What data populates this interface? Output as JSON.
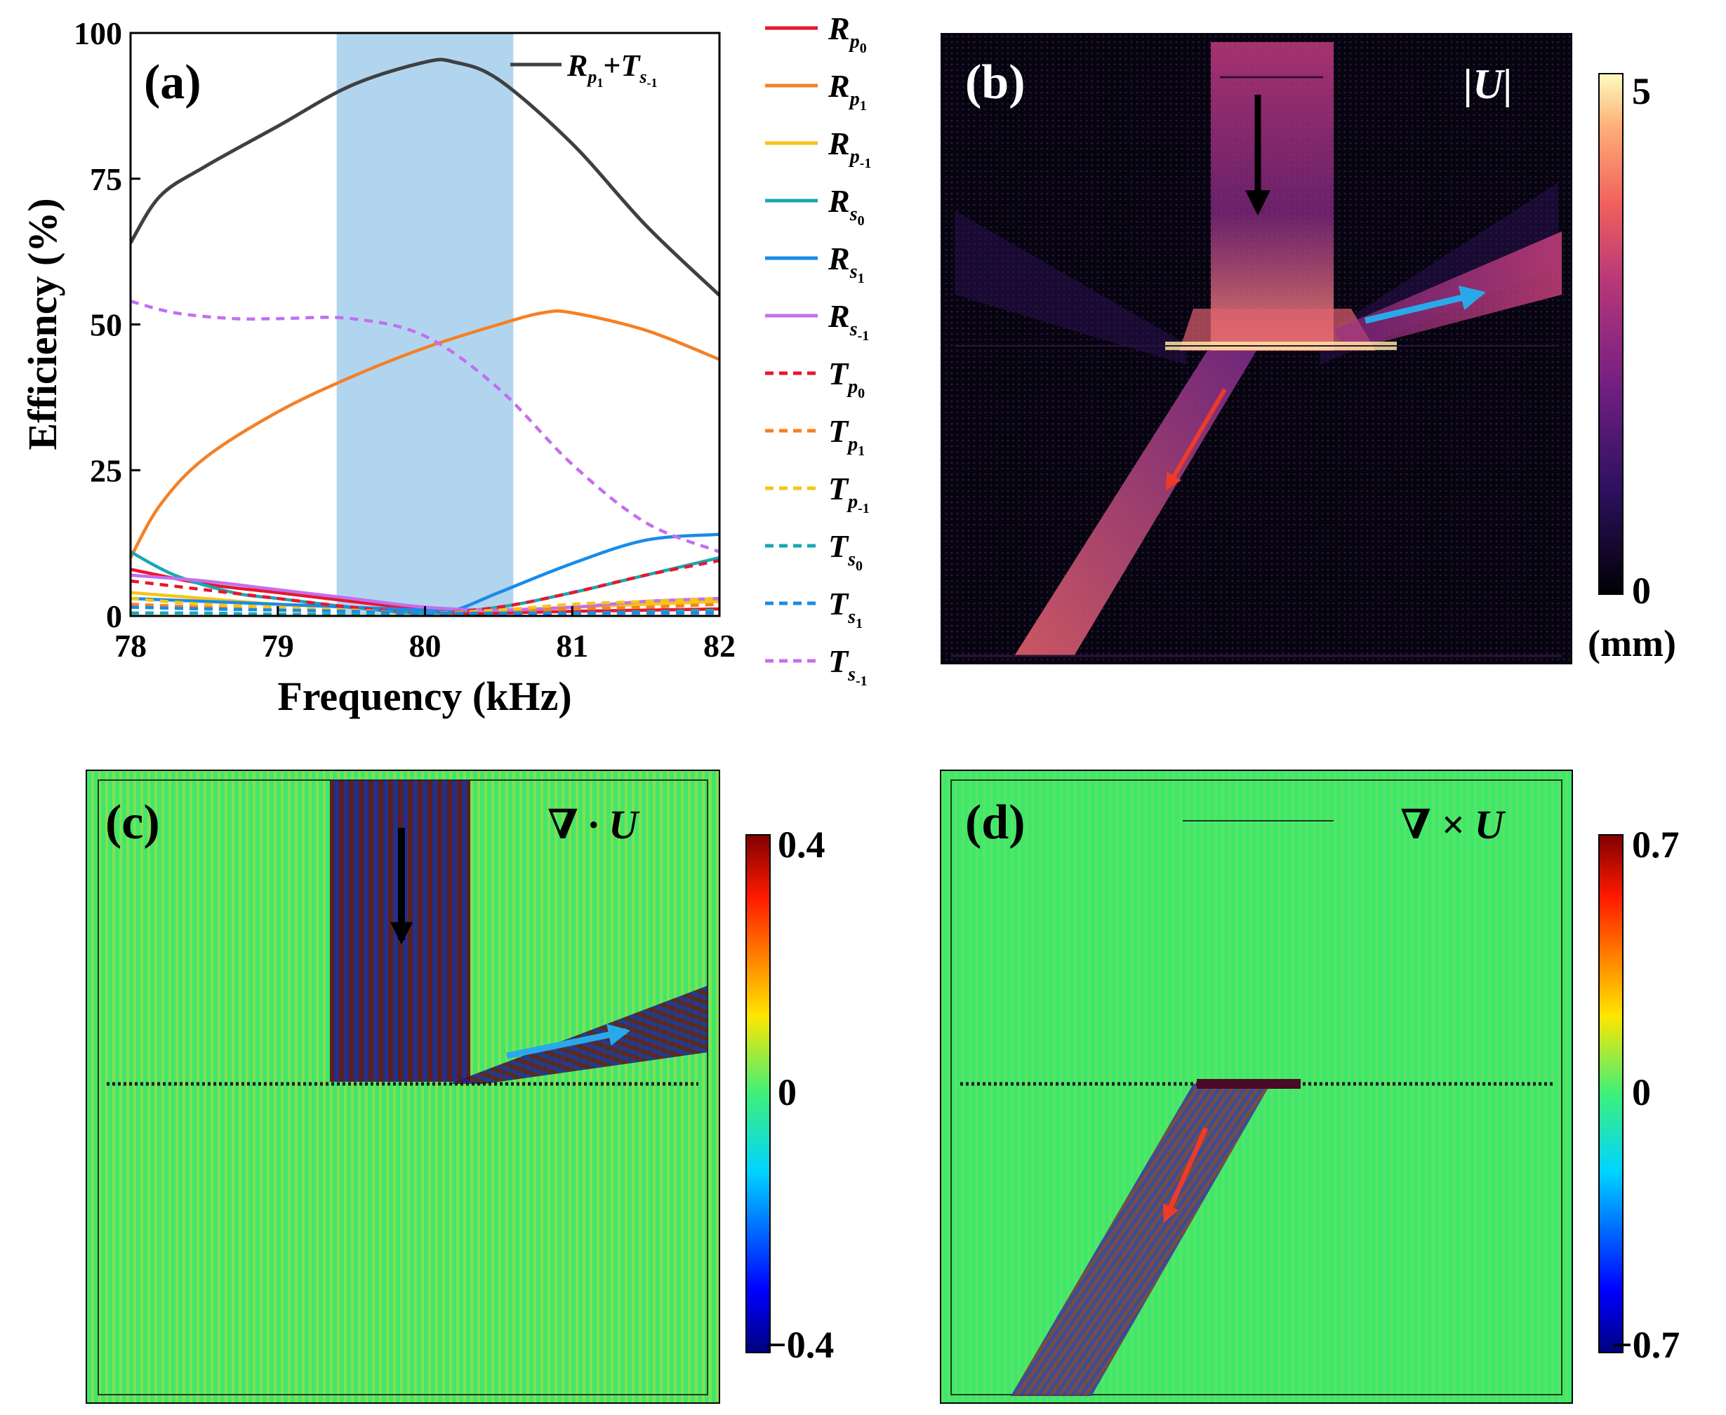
{
  "colors": {
    "total": "#404040",
    "Rp0": "#e8162d",
    "Rp1": "#f58025",
    "Rpm1": "#f5c518",
    "Rs0": "#16a9b2",
    "Rs1": "#1a8be8",
    "Rsm1": "#c36ff0",
    "Tp0": "#e8162d",
    "Tp1": "#f58025",
    "Tpm1": "#f5c518",
    "Ts0": "#16a9b2",
    "Ts1": "#1a8be8",
    "Tsm1": "#c36ff0",
    "band": "#b2d5ef",
    "incident_arrow": "#000000",
    "reflect_arrow": "#2aa9ea",
    "transmit_arrow": "#ef3a2a"
  },
  "panels": {
    "a": {
      "label": "(a)"
    },
    "b": {
      "label": "(b)",
      "field": "|U|",
      "cbar_max": "5",
      "cbar_min": "0",
      "unit": "(mm)"
    },
    "c": {
      "label": "(c)",
      "field": "∇ · U",
      "cbar_max": "0.4",
      "cbar_mid": "0",
      "cbar_min": "−0.4"
    },
    "d": {
      "label": "(d)",
      "field": "∇ × U",
      "cbar_max": "0.7",
      "cbar_mid": "0",
      "cbar_min": "−0.7"
    }
  },
  "legend": {
    "total": {
      "base1": "R",
      "sub1": "p",
      "subsub1": "1",
      "plus": "+",
      "base2": "T",
      "sub2": "s",
      "subsub2": "-1"
    },
    "items": [
      {
        "key": "Rp0",
        "base": "R",
        "sub": "p",
        "subsub": "0",
        "dashed": false
      },
      {
        "key": "Rp1",
        "base": "R",
        "sub": "p",
        "subsub": "1",
        "dashed": false
      },
      {
        "key": "Rpm1",
        "base": "R",
        "sub": "p",
        "subsub": "-1",
        "dashed": false
      },
      {
        "key": "Rs0",
        "base": "R",
        "sub": "s",
        "subsub": "0",
        "dashed": false
      },
      {
        "key": "Rs1",
        "base": "R",
        "sub": "s",
        "subsub": "1",
        "dashed": false
      },
      {
        "key": "Rsm1",
        "base": "R",
        "sub": "s",
        "subsub": "-1",
        "dashed": false
      },
      {
        "key": "Tp0",
        "base": "T",
        "sub": "p",
        "subsub": "0",
        "dashed": true
      },
      {
        "key": "Tp1",
        "base": "T",
        "sub": "p",
        "subsub": "1",
        "dashed": true
      },
      {
        "key": "Tpm1",
        "base": "T",
        "sub": "p",
        "subsub": "-1",
        "dashed": true
      },
      {
        "key": "Ts0",
        "base": "T",
        "sub": "s",
        "subsub": "0",
        "dashed": true
      },
      {
        "key": "Ts1",
        "base": "T",
        "sub": "s",
        "subsub": "1",
        "dashed": true
      },
      {
        "key": "Tsm1",
        "base": "T",
        "sub": "s",
        "subsub": "-1",
        "dashed": true
      }
    ]
  },
  "chart_data": {
    "type": "line",
    "xlabel": "Frequency (kHz)",
    "ylabel": "Efficiency (%)",
    "xlim": [
      78,
      82
    ],
    "ylim": [
      0,
      100
    ],
    "xticks": [
      78,
      79,
      80,
      81,
      82
    ],
    "yticks": [
      0,
      25,
      50,
      75,
      100
    ],
    "grid": false,
    "shaded_band": [
      79.4,
      80.6
    ],
    "series": [
      {
        "key": "total",
        "dashed": false,
        "x": [
          78,
          78.2,
          78.5,
          79,
          79.5,
          80,
          80.2,
          80.5,
          81,
          81.5,
          82
        ],
        "y": [
          64,
          72,
          77,
          84,
          91,
          95,
          95,
          92,
          81,
          67,
          55
        ]
      },
      {
        "key": "Rp0",
        "dashed": false,
        "x": [
          78,
          78.5,
          79,
          79.5,
          80,
          80.2,
          80.5,
          81,
          81.5,
          82
        ],
        "y": [
          8,
          5.5,
          4,
          2.5,
          1,
          0.5,
          0.5,
          0.8,
          1,
          1.2
        ]
      },
      {
        "key": "Rp1",
        "dashed": false,
        "x": [
          78,
          78.2,
          78.5,
          79,
          79.5,
          80,
          80.5,
          80.8,
          81,
          81.5,
          82
        ],
        "y": [
          10,
          19,
          27,
          35,
          41,
          46,
          50,
          52,
          52,
          49,
          44
        ]
      },
      {
        "key": "Rpm1",
        "dashed": false,
        "x": [
          78,
          78.5,
          79,
          79.5,
          80,
          80.5,
          81,
          81.5,
          82
        ],
        "y": [
          4,
          3,
          2,
          1.5,
          1,
          1,
          1.5,
          2,
          2.5
        ]
      },
      {
        "key": "Rs0",
        "dashed": false,
        "x": [
          78,
          78.3,
          78.7,
          79,
          79.5,
          80,
          80.5,
          81,
          81.5,
          82
        ],
        "y": [
          11,
          7,
          4,
          3,
          1.5,
          0.5,
          1.5,
          4,
          7,
          10
        ]
      },
      {
        "key": "Rs1",
        "dashed": false,
        "x": [
          78,
          78.5,
          79,
          79.5,
          80,
          80.2,
          80.5,
          81,
          81.5,
          82
        ],
        "y": [
          3,
          2.5,
          2,
          1.5,
          1,
          1,
          4,
          9,
          13,
          14
        ]
      },
      {
        "key": "Rsm1",
        "dashed": false,
        "x": [
          78,
          78.5,
          79,
          79.5,
          80,
          80.5,
          81,
          81.5,
          82
        ],
        "y": [
          7,
          6,
          4.5,
          3,
          1.5,
          1,
          1.5,
          2.5,
          3
        ]
      },
      {
        "key": "Tp0",
        "dashed": true,
        "x": [
          78,
          78.5,
          79,
          79.5,
          80,
          80.5,
          81,
          81.5,
          82
        ],
        "y": [
          6,
          4.5,
          3,
          1.5,
          0.5,
          1.5,
          4,
          7,
          9.5
        ]
      },
      {
        "key": "Tp1",
        "dashed": true,
        "x": [
          78,
          78.5,
          79,
          79.5,
          80,
          80.5,
          81,
          81.5,
          82
        ],
        "y": [
          2,
          1.5,
          1,
          0.8,
          0.5,
          0.8,
          1.2,
          1.5,
          2
        ]
      },
      {
        "key": "Tpm1",
        "dashed": true,
        "x": [
          78,
          78.5,
          79,
          79.5,
          80,
          80.5,
          81,
          81.5,
          82
        ],
        "y": [
          3,
          2,
          1.5,
          1,
          0.5,
          1,
          2,
          2.5,
          3
        ]
      },
      {
        "key": "Ts0",
        "dashed": true,
        "x": [
          78,
          78.5,
          79,
          79.5,
          80,
          80.5,
          81,
          81.5,
          82
        ],
        "y": [
          0.5,
          0.5,
          0.3,
          0.3,
          0.2,
          0.3,
          0.5,
          0.7,
          1
        ]
      },
      {
        "key": "Ts1",
        "dashed": true,
        "x": [
          78,
          78.5,
          79,
          79.5,
          80,
          80.5,
          81,
          81.5,
          82
        ],
        "y": [
          1.5,
          1.2,
          1,
          0.8,
          0.5,
          0.5,
          0.5,
          0.5,
          0.5
        ]
      },
      {
        "key": "Tsm1",
        "dashed": true,
        "x": [
          78,
          78.3,
          78.7,
          79,
          79.5,
          80,
          80.5,
          81,
          81.5,
          82
        ],
        "y": [
          54,
          52,
          51,
          51,
          51,
          48,
          39,
          26,
          16,
          11
        ]
      }
    ]
  }
}
